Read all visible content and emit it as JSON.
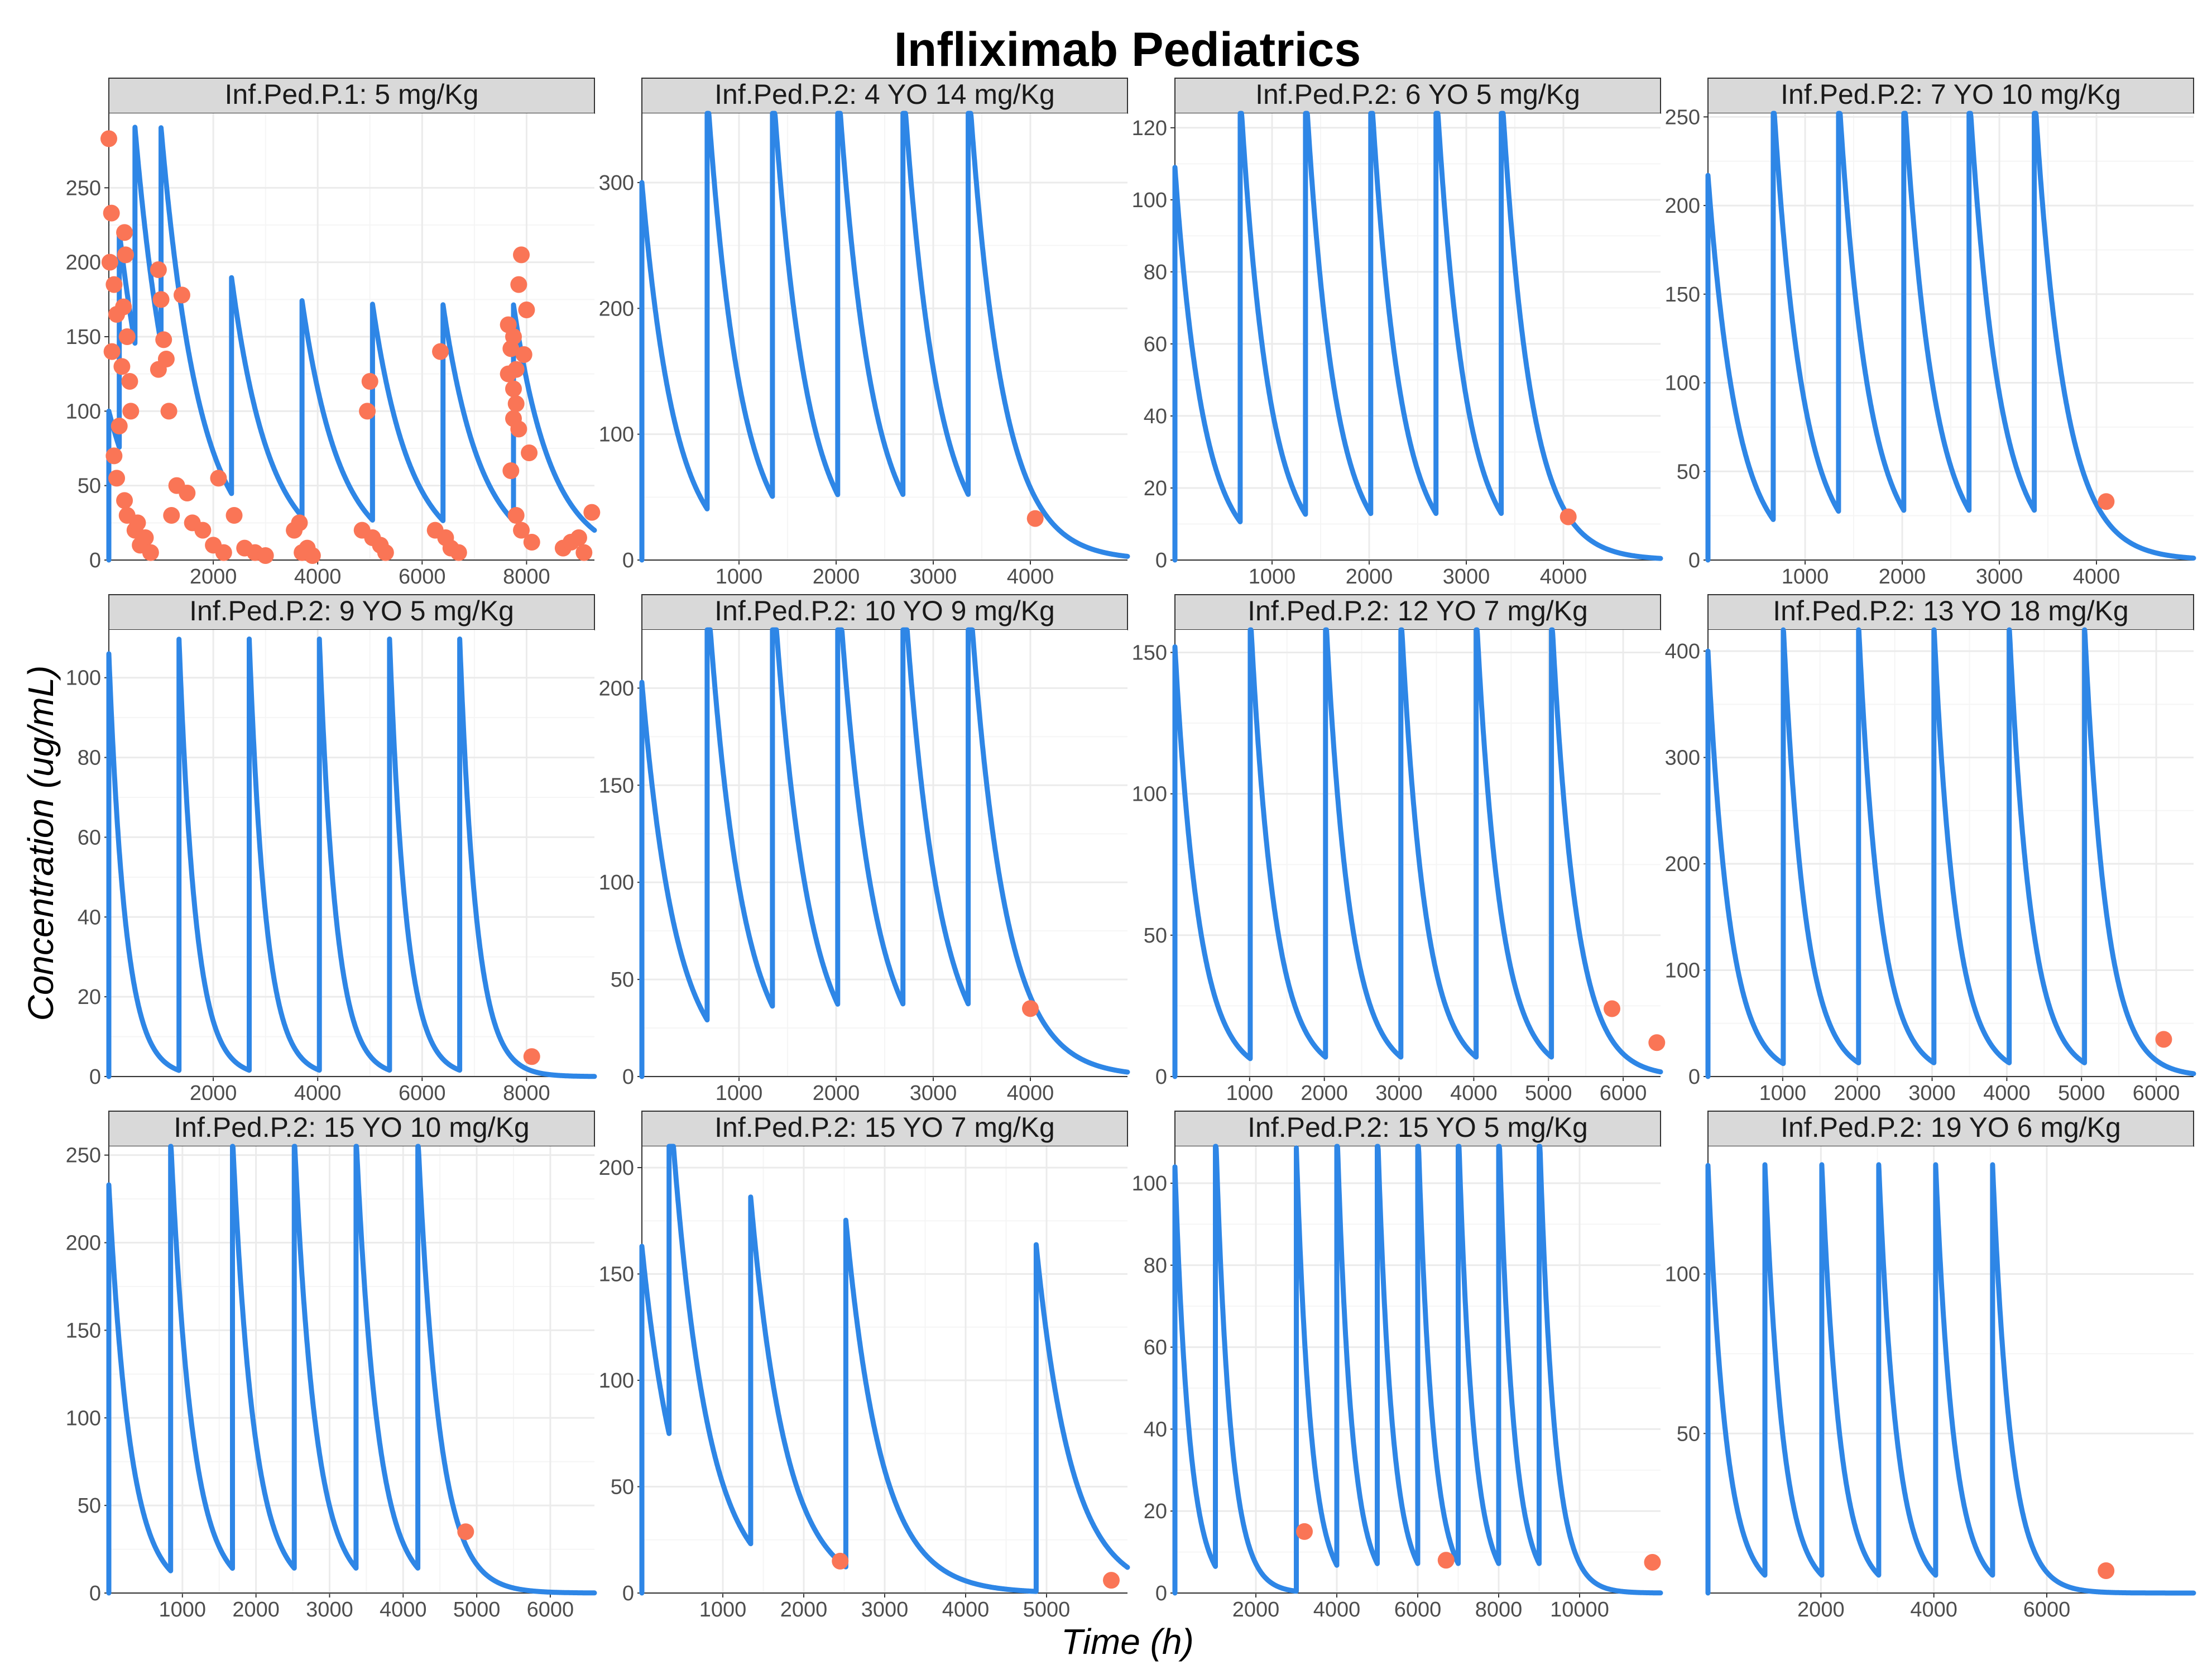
{
  "colors": {
    "line": "#2E86E6",
    "point": "#FA7556",
    "strip": "#D9D9D9",
    "strip_border": "#333333",
    "grid_major": "#EBEBEB",
    "grid_minor": "#F5F5F5"
  },
  "chart_data": {
    "type": "line",
    "title": "Infliximab Pediatrics",
    "xlabel": "Time (h)",
    "ylabel": "Concentration (ug/mL)",
    "panels": [
      {
        "label": "Inf.Ped.P.1: 5 mg/Kg",
        "xlim": [
          0,
          9300
        ],
        "ylim": [
          0,
          300
        ],
        "xticks": [
          2000,
          4000,
          6000,
          8000
        ],
        "yticks": [
          0,
          50,
          100,
          150,
          200,
          250
        ],
        "c0": 100,
        "dose_times": [
          0,
          200,
          500,
          1000,
          2350,
          3700,
          5050,
          6400,
          7750
        ],
        "peak_scale": 1.45,
        "half_life": 500,
        "observed": [
          {
            "x": 0,
            "y": 283
          },
          {
            "x": 50,
            "y": 233
          },
          {
            "x": 20,
            "y": 200
          },
          {
            "x": 100,
            "y": 185
          },
          {
            "x": 150,
            "y": 165
          },
          {
            "x": 60,
            "y": 140
          },
          {
            "x": 250,
            "y": 130
          },
          {
            "x": 300,
            "y": 220
          },
          {
            "x": 320,
            "y": 205
          },
          {
            "x": 280,
            "y": 170
          },
          {
            "x": 350,
            "y": 150
          },
          {
            "x": 400,
            "y": 120
          },
          {
            "x": 420,
            "y": 100
          },
          {
            "x": 200,
            "y": 90
          },
          {
            "x": 100,
            "y": 70
          },
          {
            "x": 150,
            "y": 55
          },
          {
            "x": 300,
            "y": 40
          },
          {
            "x": 350,
            "y": 30
          },
          {
            "x": 500,
            "y": 20
          },
          {
            "x": 600,
            "y": 10
          },
          {
            "x": 700,
            "y": 15
          },
          {
            "x": 800,
            "y": 5
          },
          {
            "x": 550,
            "y": 25
          },
          {
            "x": 950,
            "y": 195
          },
          {
            "x": 1000,
            "y": 175
          },
          {
            "x": 1050,
            "y": 148
          },
          {
            "x": 950,
            "y": 128
          },
          {
            "x": 1100,
            "y": 135
          },
          {
            "x": 1400,
            "y": 178
          },
          {
            "x": 1150,
            "y": 100
          },
          {
            "x": 1300,
            "y": 50
          },
          {
            "x": 1500,
            "y": 45
          },
          {
            "x": 1200,
            "y": 30
          },
          {
            "x": 1600,
            "y": 25
          },
          {
            "x": 1800,
            "y": 20
          },
          {
            "x": 2000,
            "y": 10
          },
          {
            "x": 2200,
            "y": 5
          },
          {
            "x": 2100,
            "y": 55
          },
          {
            "x": 2400,
            "y": 30
          },
          {
            "x": 2600,
            "y": 8
          },
          {
            "x": 2800,
            "y": 5
          },
          {
            "x": 3000,
            "y": 3
          },
          {
            "x": 3550,
            "y": 20
          },
          {
            "x": 3650,
            "y": 25
          },
          {
            "x": 3800,
            "y": 8
          },
          {
            "x": 3700,
            "y": 5
          },
          {
            "x": 3900,
            "y": 3
          },
          {
            "x": 5000,
            "y": 120
          },
          {
            "x": 4950,
            "y": 100
          },
          {
            "x": 4850,
            "y": 20
          },
          {
            "x": 5050,
            "y": 15
          },
          {
            "x": 5200,
            "y": 10
          },
          {
            "x": 5300,
            "y": 5
          },
          {
            "x": 6350,
            "y": 140
          },
          {
            "x": 6250,
            "y": 20
          },
          {
            "x": 6450,
            "y": 15
          },
          {
            "x": 6550,
            "y": 8
          },
          {
            "x": 6700,
            "y": 5
          },
          {
            "x": 7900,
            "y": 205
          },
          {
            "x": 7850,
            "y": 185
          },
          {
            "x": 8000,
            "y": 168
          },
          {
            "x": 7650,
            "y": 158
          },
          {
            "x": 7750,
            "y": 150
          },
          {
            "x": 7700,
            "y": 142
          },
          {
            "x": 7950,
            "y": 138
          },
          {
            "x": 7800,
            "y": 128
          },
          {
            "x": 7650,
            "y": 125
          },
          {
            "x": 7750,
            "y": 115
          },
          {
            "x": 7800,
            "y": 105
          },
          {
            "x": 7750,
            "y": 95
          },
          {
            "x": 7850,
            "y": 88
          },
          {
            "x": 8050,
            "y": 72
          },
          {
            "x": 7700,
            "y": 60
          },
          {
            "x": 7800,
            "y": 30
          },
          {
            "x": 7900,
            "y": 20
          },
          {
            "x": 8100,
            "y": 12
          },
          {
            "x": 8700,
            "y": 8
          },
          {
            "x": 8850,
            "y": 12
          },
          {
            "x": 9000,
            "y": 15
          },
          {
            "x": 9100,
            "y": 5
          },
          {
            "x": 9250,
            "y": 32
          }
        ]
      },
      {
        "label": "Inf.Ped.P.2: 4 YO 14 mg/Kg",
        "xlim": [
          0,
          5000
        ],
        "ylim": [
          0,
          355
        ],
        "xticks": [
          1000,
          2000,
          3000,
          4000
        ],
        "yticks": [
          0,
          100,
          200,
          300
        ],
        "c0": 300,
        "dose_times": [
          0,
          672,
          1344,
          2016,
          2688,
          3360
        ],
        "peak_scale": 1.11,
        "half_life": 233,
        "observed": [
          {
            "x": 4050,
            "y": 33
          }
        ]
      },
      {
        "label": "Inf.Ped.P.2: 6 YO 5 mg/Kg",
        "xlim": [
          0,
          5000
        ],
        "ylim": [
          0,
          124
        ],
        "xticks": [
          1000,
          2000,
          3000,
          4000
        ],
        "yticks": [
          0,
          20,
          40,
          60,
          80,
          100,
          120
        ],
        "c0": 109,
        "dose_times": [
          0,
          672,
          1344,
          2016,
          2688,
          3360
        ],
        "peak_scale": 1.1,
        "half_life": 200,
        "observed": [
          {
            "x": 4050,
            "y": 12
          }
        ]
      },
      {
        "label": "Inf.Ped.P.2: 7 YO 10 mg/Kg",
        "xlim": [
          0,
          5000
        ],
        "ylim": [
          0,
          252
        ],
        "xticks": [
          1000,
          2000,
          3000,
          4000
        ],
        "yticks": [
          0,
          50,
          100,
          150,
          200,
          250
        ],
        "c0": 217,
        "dose_times": [
          0,
          672,
          1344,
          2016,
          2688,
          3360
        ],
        "peak_scale": 1.1,
        "half_life": 207,
        "observed": [
          {
            "x": 4100,
            "y": 33
          }
        ]
      },
      {
        "label": "Inf.Ped.P.2: 9 YO 5 mg/Kg",
        "xlim": [
          0,
          9300
        ],
        "ylim": [
          0,
          112
        ],
        "xticks": [
          2000,
          4000,
          6000,
          8000
        ],
        "yticks": [
          0,
          20,
          40,
          60,
          80,
          100
        ],
        "c0": 106,
        "dose_times": [
          0,
          1344,
          2688,
          4032,
          5376,
          6720
        ],
        "peak_scale": 1.02,
        "half_life": 220,
        "observed": [
          {
            "x": 8100,
            "y": 5
          }
        ]
      },
      {
        "label": "Inf.Ped.P.2: 10 YO 9 mg/Kg",
        "xlim": [
          0,
          5000
        ],
        "ylim": [
          0,
          230
        ],
        "xticks": [
          1000,
          2000,
          3000,
          4000
        ],
        "yticks": [
          0,
          50,
          100,
          150,
          200
        ],
        "c0": 203,
        "dose_times": [
          0,
          672,
          1344,
          2016,
          2688,
          3360
        ],
        "peak_scale": 1.1,
        "half_life": 240,
        "observed": [
          {
            "x": 4000,
            "y": 35
          }
        ]
      },
      {
        "label": "Inf.Ped.P.2: 12 YO 7 mg/Kg",
        "xlim": [
          0,
          6500
        ],
        "ylim": [
          0,
          158
        ],
        "xticks": [
          1000,
          2000,
          3000,
          4000,
          5000,
          6000
        ],
        "yticks": [
          0,
          50,
          100,
          150
        ],
        "c0": 152,
        "dose_times": [
          0,
          1008,
          2016,
          3024,
          4032,
          5040
        ],
        "peak_scale": 1.04,
        "half_life": 220,
        "observed": [
          {
            "x": 5850,
            "y": 24
          },
          {
            "x": 6450,
            "y": 12
          }
        ]
      },
      {
        "label": "Inf.Ped.P.2: 13 YO 18 mg/Kg",
        "xlim": [
          0,
          6500
        ],
        "ylim": [
          0,
          420
        ],
        "xticks": [
          1000,
          2000,
          3000,
          4000,
          5000,
          6000
        ],
        "yticks": [
          0,
          100,
          200,
          300,
          400
        ],
        "c0": 400,
        "dose_times": [
          0,
          1008,
          2016,
          3024,
          4032,
          5040
        ],
        "peak_scale": 1.03,
        "half_life": 200,
        "observed": [
          {
            "x": 6100,
            "y": 35
          }
        ]
      },
      {
        "label": "Inf.Ped.P.2: 15 YO 10 mg/Kg",
        "xlim": [
          0,
          6600
        ],
        "ylim": [
          0,
          255
        ],
        "xticks": [
          1000,
          2000,
          3000,
          4000,
          5000,
          6000
        ],
        "yticks": [
          0,
          50,
          100,
          150,
          200,
          250
        ],
        "c0": 233,
        "dose_times": [
          0,
          840,
          1680,
          2520,
          3360,
          4200
        ],
        "peak_scale": 1.06,
        "half_life": 200,
        "observed": [
          {
            "x": 4850,
            "y": 35
          }
        ]
      },
      {
        "label": "Inf.Ped.P.2: 15 YO 7 mg/Kg",
        "xlim": [
          0,
          6000
        ],
        "ylim": [
          0,
          210
        ],
        "xticks": [
          1000,
          2000,
          3000,
          4000,
          5000
        ],
        "yticks": [
          0,
          50,
          100,
          150,
          200
        ],
        "c0": 163,
        "dose_times": [
          0,
          336,
          1344,
          2520,
          4872
        ],
        "peak_scale": 1.0,
        "half_life": 300,
        "observed": [
          {
            "x": 2450,
            "y": 15
          },
          {
            "x": 5800,
            "y": 6
          }
        ]
      },
      {
        "label": "Inf.Ped.P.2: 15 YO 5 mg/Kg",
        "xlim": [
          0,
          12000
        ],
        "ylim": [
          0,
          109
        ],
        "xticks": [
          2000,
          4000,
          6000,
          8000,
          10000
        ],
        "yticks": [
          0,
          20,
          40,
          60,
          80,
          100
        ],
        "c0": 104,
        "dose_times": [
          0,
          1000,
          3000,
          4000,
          5000,
          6000,
          7000,
          8000,
          9000
        ],
        "peak_scale": 1.04,
        "half_life": 250,
        "observed": [
          {
            "x": 3200,
            "y": 15
          },
          {
            "x": 6700,
            "y": 8
          },
          {
            "x": 11800,
            "y": 7.5
          }
        ]
      },
      {
        "label": "Inf.Ped.P.2: 19 YO 6 mg/Kg",
        "xlim": [
          0,
          8600
        ],
        "ylim": [
          0,
          140
        ],
        "xticks": [
          2000,
          4000,
          6000
        ],
        "yticks": [
          50,
          100
        ],
        "c0": 134,
        "dose_times": [
          0,
          1008,
          2016,
          3024,
          4032,
          5040
        ],
        "peak_scale": 0.96,
        "half_life": 220,
        "observed": [
          {
            "x": 7050,
            "y": 7
          }
        ]
      }
    ]
  }
}
